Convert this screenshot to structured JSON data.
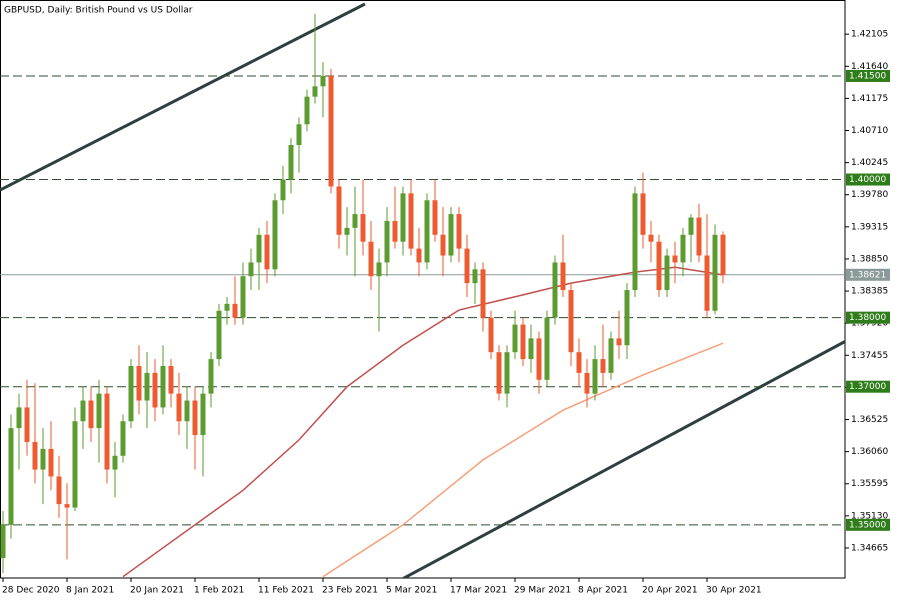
{
  "chart_data": {
    "type": "candlestick",
    "title": "GBPUSD, Daily:  British Pound vs US Dollar",
    "categories": [
      "28 Dec 2020",
      null,
      null,
      null,
      null,
      null,
      null,
      null,
      "8 Jan 2021",
      null,
      null,
      null,
      null,
      null,
      null,
      null,
      "20 Jan 2021",
      null,
      null,
      null,
      null,
      null,
      null,
      null,
      "1 Feb 2021",
      null,
      null,
      null,
      null,
      null,
      null,
      null,
      "11 Feb 2021",
      null,
      null,
      null,
      null,
      null,
      null,
      null,
      "23 Feb 2021",
      null,
      null,
      null,
      null,
      null,
      null,
      null,
      "5 Mar 2021",
      null,
      null,
      null,
      null,
      null,
      null,
      null,
      "17 Mar 2021",
      null,
      null,
      null,
      null,
      null,
      null,
      null,
      "29 Mar 2021",
      null,
      null,
      null,
      null,
      null,
      null,
      null,
      "8 Apr 2021",
      null,
      null,
      null,
      null,
      null,
      null,
      null,
      "20 Apr 2021",
      null,
      null,
      null,
      null,
      null,
      null,
      null,
      "30 Apr 2021",
      null,
      null
    ],
    "open": [
      1.3452,
      1.35,
      1.364,
      1.367,
      1.362,
      1.358,
      1.361,
      1.357,
      1.353,
      1.3525,
      1.365,
      1.368,
      1.364,
      1.369,
      1.358,
      1.36,
      1.365,
      1.373,
      1.368,
      1.372,
      1.367,
      1.373,
      1.369,
      1.365,
      1.368,
      1.363,
      1.369,
      1.374,
      1.381,
      1.382,
      1.38,
      1.386,
      1.388,
      1.392,
      1.387,
      1.397,
      1.4,
      1.405,
      1.408,
      1.412,
      1.4135,
      1.415,
      1.399,
      1.392,
      1.393,
      1.395,
      1.391,
      1.386,
      1.388,
      1.394,
      1.391,
      1.398,
      1.39,
      1.388,
      1.397,
      1.392,
      1.389,
      1.395,
      1.39,
      1.385,
      1.387,
      1.38,
      1.375,
      1.369,
      1.375,
      1.379,
      1.374,
      1.377,
      1.371,
      1.38,
      1.388,
      1.384,
      1.375,
      1.372,
      1.369,
      1.374,
      1.372,
      1.377,
      1.376,
      1.384,
      1.398,
      1.392,
      1.391,
      1.384,
      1.389,
      1.388,
      1.392,
      1.3945,
      1.389,
      1.381,
      1.392
    ],
    "high": [
      1.352,
      1.366,
      1.369,
      1.371,
      1.3705,
      1.364,
      1.365,
      1.36,
      1.356,
      1.367,
      1.37,
      1.37,
      1.371,
      1.37,
      1.362,
      1.366,
      1.374,
      1.376,
      1.375,
      1.374,
      1.376,
      1.374,
      1.372,
      1.37,
      1.37,
      1.37,
      1.375,
      1.382,
      1.383,
      1.386,
      1.388,
      1.39,
      1.393,
      1.394,
      1.398,
      1.402,
      1.406,
      1.409,
      1.413,
      1.424,
      1.417,
      1.416,
      1.4,
      1.396,
      1.399,
      1.4,
      1.394,
      1.39,
      1.396,
      1.399,
      1.399,
      1.4,
      1.393,
      1.398,
      1.4,
      1.396,
      1.396,
      1.396,
      1.392,
      1.388,
      1.388,
      1.381,
      1.376,
      1.376,
      1.381,
      1.38,
      1.379,
      1.378,
      1.381,
      1.389,
      1.392,
      1.385,
      1.377,
      1.374,
      1.376,
      1.379,
      1.378,
      1.381,
      1.385,
      1.399,
      1.401,
      1.394,
      1.392,
      1.39,
      1.391,
      1.393,
      1.395,
      1.3965,
      1.395,
      1.3935,
      1.3925
    ],
    "low": [
      1.343,
      1.348,
      1.358,
      1.36,
      1.356,
      1.353,
      1.355,
      1.351,
      1.345,
      1.352,
      1.361,
      1.362,
      1.359,
      1.356,
      1.354,
      1.359,
      1.364,
      1.366,
      1.364,
      1.365,
      1.366,
      1.367,
      1.363,
      1.361,
      1.358,
      1.357,
      1.367,
      1.373,
      1.379,
      1.379,
      1.379,
      1.384,
      1.384,
      1.385,
      1.386,
      1.395,
      1.398,
      1.401,
      1.407,
      1.411,
      1.409,
      1.398,
      1.39,
      1.389,
      1.386,
      1.389,
      1.384,
      1.378,
      1.386,
      1.39,
      1.389,
      1.389,
      1.386,
      1.387,
      1.391,
      1.386,
      1.388,
      1.388,
      1.383,
      1.382,
      1.378,
      1.374,
      1.368,
      1.367,
      1.374,
      1.373,
      1.372,
      1.369,
      1.37,
      1.379,
      1.383,
      1.373,
      1.37,
      1.367,
      1.368,
      1.37,
      1.371,
      1.374,
      1.374,
      1.383,
      1.39,
      1.388,
      1.383,
      1.383,
      1.385,
      1.386,
      1.388,
      1.388,
      1.38,
      1.3805,
      1.385
    ],
    "close": [
      1.35,
      1.364,
      1.367,
      1.362,
      1.358,
      1.361,
      1.357,
      1.353,
      1.3525,
      1.365,
      1.368,
      1.364,
      1.369,
      1.358,
      1.36,
      1.365,
      1.373,
      1.368,
      1.372,
      1.367,
      1.373,
      1.369,
      1.365,
      1.368,
      1.363,
      1.369,
      1.374,
      1.381,
      1.382,
      1.38,
      1.386,
      1.388,
      1.392,
      1.387,
      1.397,
      1.4,
      1.405,
      1.408,
      1.412,
      1.4135,
      1.415,
      1.399,
      1.392,
      1.393,
      1.395,
      1.391,
      1.386,
      1.388,
      1.394,
      1.391,
      1.398,
      1.39,
      1.388,
      1.397,
      1.392,
      1.389,
      1.395,
      1.39,
      1.385,
      1.387,
      1.38,
      1.375,
      1.369,
      1.375,
      1.379,
      1.374,
      1.377,
      1.371,
      1.38,
      1.388,
      1.384,
      1.375,
      1.372,
      1.369,
      1.374,
      1.372,
      1.377,
      1.376,
      1.384,
      1.398,
      1.392,
      1.391,
      1.384,
      1.389,
      1.388,
      1.392,
      1.3945,
      1.389,
      1.381,
      1.392,
      1.3862
    ],
    "up_color": "#5e9a32",
    "down_color": "#ec5b32",
    "overlays": [
      {
        "color": "#c0504d",
        "x": [
          15,
          30,
          37,
          43,
          50,
          57,
          65,
          71,
          79,
          84,
          90
        ],
        "values": [
          1.3425,
          1.355,
          1.3623,
          1.37,
          1.376,
          1.3811,
          1.3833,
          1.385,
          1.3866,
          1.3873,
          1.3862
        ]
      },
      {
        "color": "#f4a07a",
        "x": [
          40,
          50,
          60,
          70,
          80,
          90
        ],
        "values": [
          1.3425,
          1.35,
          1.3594,
          1.3666,
          1.3717,
          1.3763
        ]
      }
    ],
    "levels": [
      {
        "value": 1.415,
        "label": "1.41500"
      },
      {
        "value": 1.4,
        "label": "1.40000"
      },
      {
        "value": 1.38,
        "label": "1.38000"
      },
      {
        "value": 1.37,
        "label": "1.37000"
      },
      {
        "value": 1.35,
        "label": "1.35000"
      }
    ],
    "level_color": "#2e7d1a",
    "current_price": {
      "value": 1.38621,
      "label": "1.38621"
    },
    "ylim": [
      1.3423,
      1.426
    ],
    "yticks": [
      {
        "value": 1.42105,
        "label": "1.42105"
      },
      {
        "value": 1.4164,
        "label": "1.41640"
      },
      {
        "value": 1.41175,
        "label": "1.41175"
      },
      {
        "value": 1.4071,
        "label": "1.40710"
      },
      {
        "value": 1.40245,
        "label": "1.40245"
      },
      {
        "value": 1.3978,
        "label": "1.39780"
      },
      {
        "value": 1.39315,
        "label": "1.39315"
      },
      {
        "value": 1.3885,
        "label": "1.38850"
      },
      {
        "value": 1.38385,
        "label": "1.38385"
      },
      {
        "value": 1.3792,
        "label": "1.37920"
      },
      {
        "value": 1.37455,
        "label": "1.37455"
      },
      {
        "value": 1.3699,
        "label": "1.36990"
      },
      {
        "value": 1.36525,
        "label": "1.36525"
      },
      {
        "value": 1.3606,
        "label": "1.36060"
      },
      {
        "value": 1.35595,
        "label": "1.35595"
      },
      {
        "value": 1.3513,
        "label": "1.35130"
      },
      {
        "value": 1.34665,
        "label": "1.34665"
      }
    ]
  }
}
